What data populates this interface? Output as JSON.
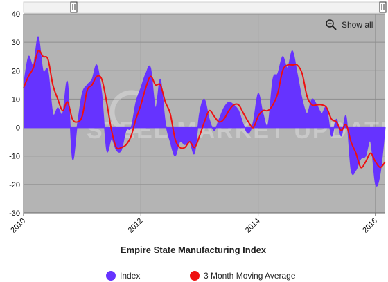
{
  "chart_data": {
    "type": "area",
    "title": "Empire State Manufacturing Index",
    "xlabel": "",
    "ylabel": "",
    "ylim": [
      -30,
      40
    ],
    "y_ticks": [
      40,
      30,
      20,
      10,
      0,
      -10,
      -20,
      -30
    ],
    "x_ticks": [
      "2010",
      "2012",
      "2014",
      "2016"
    ],
    "xlim": [
      "2010-01",
      "2016-03"
    ],
    "grid": true,
    "legend_position": "bottom",
    "watermark": "STEEL MARKET UPDATE",
    "x": [
      "2010-01",
      "2010-02",
      "2010-03",
      "2010-04",
      "2010-05",
      "2010-06",
      "2010-07",
      "2010-08",
      "2010-09",
      "2010-10",
      "2010-11",
      "2010-12",
      "2011-01",
      "2011-02",
      "2011-03",
      "2011-04",
      "2011-05",
      "2011-06",
      "2011-07",
      "2011-08",
      "2011-09",
      "2011-10",
      "2011-11",
      "2011-12",
      "2012-01",
      "2012-02",
      "2012-03",
      "2012-04",
      "2012-05",
      "2012-06",
      "2012-07",
      "2012-08",
      "2012-09",
      "2012-10",
      "2012-11",
      "2012-12",
      "2013-01",
      "2013-02",
      "2013-03",
      "2013-04",
      "2013-05",
      "2013-06",
      "2013-07",
      "2013-08",
      "2013-09",
      "2013-10",
      "2013-11",
      "2013-12",
      "2014-01",
      "2014-02",
      "2014-03",
      "2014-04",
      "2014-05",
      "2014-06",
      "2014-07",
      "2014-08",
      "2014-09",
      "2014-10",
      "2014-11",
      "2014-12",
      "2015-01",
      "2015-02",
      "2015-03",
      "2015-04",
      "2015-05",
      "2015-06",
      "2015-07",
      "2015-08",
      "2015-09",
      "2015-10",
      "2015-11",
      "2015-12",
      "2016-01",
      "2016-02",
      "2016-03"
    ],
    "series": [
      {
        "name": "Index",
        "color": "#6633ff",
        "values": [
          15,
          25,
          22,
          32,
          20,
          20,
          5,
          7,
          5,
          16,
          -11,
          1,
          12,
          15,
          17,
          22,
          12,
          -8,
          -4,
          -8,
          -8,
          -1,
          0,
          9,
          14,
          19,
          21,
          7,
          17,
          2,
          -5,
          -10,
          -5,
          -6,
          -5,
          -9,
          5,
          10,
          3,
          -1,
          3,
          7,
          9,
          8,
          6,
          1,
          -2,
          2,
          12,
          5,
          1,
          17,
          19,
          25,
          21,
          27,
          19,
          10,
          5,
          10,
          8,
          5,
          7,
          -3,
          3,
          -3,
          4,
          -15,
          -15,
          -11,
          -10,
          -5,
          -20,
          -16,
          0
        ]
      },
      {
        "name": "3 Month Moving Average",
        "color": "#ee1111",
        "values": [
          14,
          18,
          21,
          27,
          25,
          24,
          15,
          10,
          6,
          9,
          3,
          2,
          4,
          13,
          15,
          18,
          17,
          9,
          -1,
          -7,
          -7,
          -6,
          -3,
          3,
          8,
          14,
          18,
          15,
          15,
          9,
          5,
          -4,
          -7,
          -7,
          -5,
          -7,
          -3,
          2,
          6,
          4,
          2,
          3,
          6,
          8,
          8,
          5,
          2,
          0,
          4,
          6,
          6,
          8,
          12,
          20,
          22,
          22,
          22,
          19,
          11,
          8,
          8,
          8,
          7,
          3,
          2,
          -1,
          1,
          -5,
          -9,
          -14,
          -12,
          -9,
          -12,
          -14,
          -12
        ]
      }
    ]
  },
  "ui": {
    "show_all_label": "Show all",
    "legend": [
      {
        "label": "Index",
        "color": "#6633ff"
      },
      {
        "label": "3 Month Moving Average",
        "color": "#ee1111"
      }
    ]
  }
}
